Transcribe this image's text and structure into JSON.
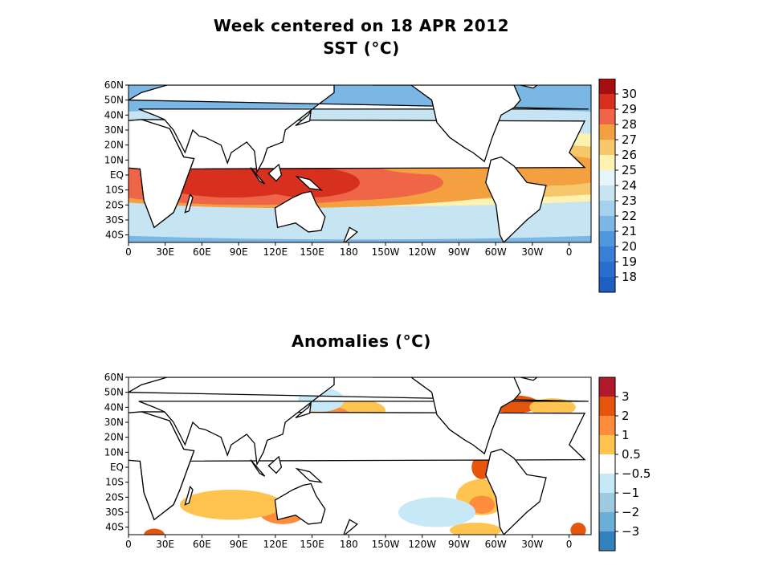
{
  "figure": {
    "title": "Week centered on 18 APR 2012"
  },
  "chart_data": [
    {
      "type": "heatmap",
      "title": "SST (°C)",
      "x_ticks": [
        "0",
        "30E",
        "60E",
        "90E",
        "120E",
        "150E",
        "180",
        "150W",
        "120W",
        "90W",
        "60W",
        "30W",
        "0"
      ],
      "y_ticks": [
        "60N",
        "50N",
        "40N",
        "30N",
        "20N",
        "10N",
        "EQ",
        "10S",
        "20S",
        "30S",
        "40S"
      ],
      "colorbar": {
        "labels": [
          "30",
          "29",
          "28",
          "27",
          "26",
          "25",
          "24",
          "23",
          "22",
          "21",
          "20",
          "19",
          "18"
        ],
        "colors": [
          "#a50f0f",
          "#d7301f",
          "#ef6548",
          "#f4a040",
          "#f7c76b",
          "#fdf2b0",
          "#e6f5f9",
          "#c6e4f2",
          "#a6d1ec",
          "#7ab7e4",
          "#4f98dd",
          "#3a7fd6",
          "#2b6ed0",
          "#1f5fc4"
        ]
      },
      "land_color": "#ffffff",
      "grid": false
    },
    {
      "type": "heatmap",
      "title": "Anomalies (°C)",
      "x_ticks": [
        "0",
        "30E",
        "60E",
        "90E",
        "120E",
        "150E",
        "180",
        "150W",
        "120W",
        "90W",
        "60W",
        "30W",
        "0"
      ],
      "y_ticks": [
        "60N",
        "50N",
        "40N",
        "30N",
        "20N",
        "10N",
        "EQ",
        "10S",
        "20S",
        "30S",
        "40S"
      ],
      "colorbar": {
        "labels": [
          "3",
          "2",
          "1",
          "0.5",
          "−0.5",
          "−1",
          "−2",
          "−3"
        ],
        "colors": [
          "#b2182b",
          "#e6550d",
          "#fd8d3c",
          "#fec44f",
          "#ffffff",
          "#c7e9f7",
          "#9ecae1",
          "#6baed6",
          "#3182bd"
        ]
      },
      "land_color": "#ffffff",
      "grid": false
    }
  ]
}
